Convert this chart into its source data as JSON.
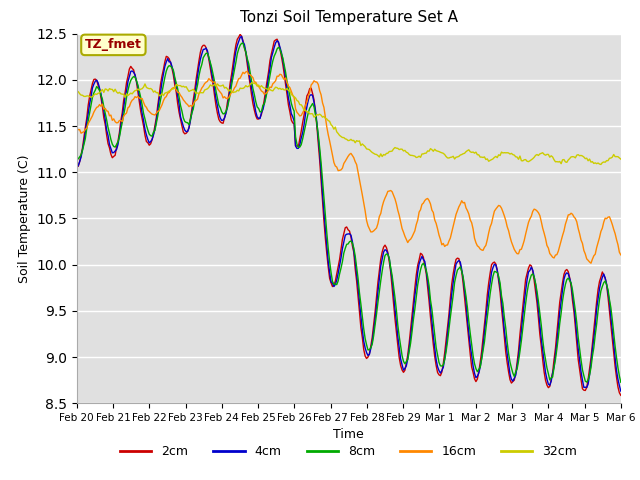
{
  "title": "Tonzi Soil Temperature Set A",
  "xlabel": "Time",
  "ylabel": "Soil Temperature (C)",
  "ylim": [
    8.5,
    12.5
  ],
  "annotation": "TZ_fmet",
  "annotation_color": "#990000",
  "series_colors": [
    "#cc0000",
    "#0000cc",
    "#00aa00",
    "#ff8800",
    "#cccc00"
  ],
  "series_labels": [
    "2cm",
    "4cm",
    "8cm",
    "16cm",
    "32cm"
  ],
  "bg_color": "#e0e0e0",
  "fig_color": "#ffffff",
  "days": [
    "Feb 20",
    "Feb 21",
    "Feb 22",
    "Feb 23",
    "Feb 24",
    "Feb 25",
    "Feb 26",
    "Feb 27",
    "Feb 28",
    "Feb 29",
    "Mar 1",
    "Mar 2",
    "Mar 3",
    "Mar 4",
    "Mar 5",
    "Mar 6"
  ],
  "n_points": 384
}
